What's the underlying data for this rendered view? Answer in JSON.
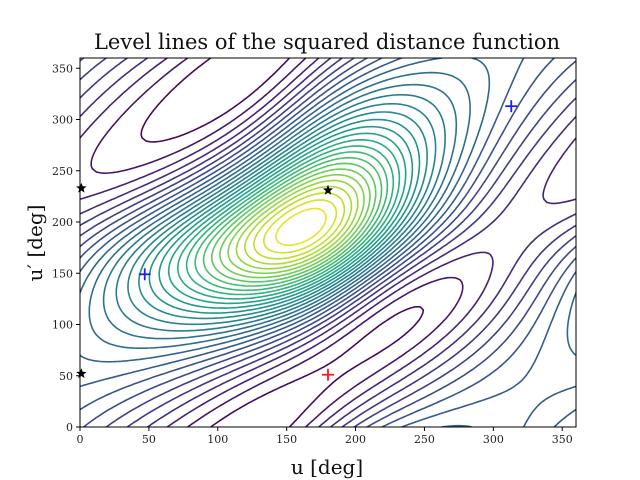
{
  "chart_data": {
    "type": "contour",
    "title": "Level lines of the squared distance function",
    "xlabel": "u [deg]",
    "ylabel": "u′ [deg]",
    "xlim": [
      0,
      360
    ],
    "ylim": [
      0,
      360
    ],
    "xticks": [
      0,
      50,
      100,
      150,
      200,
      250,
      300,
      350
    ],
    "yticks": [
      0,
      50,
      100,
      150,
      200,
      250,
      300,
      350
    ],
    "grid": false,
    "colormap": "viridis",
    "markers": [
      {
        "kind": "minimum",
        "symbol": "+",
        "color": "#1f1fff",
        "x": 47,
        "y": 149
      },
      {
        "kind": "minimum",
        "symbol": "+",
        "color": "#1f1fff",
        "x": 313,
        "y": 313
      },
      {
        "kind": "maximum",
        "symbol": "+",
        "color": "#ff1a1a",
        "x": 180,
        "y": 51
      },
      {
        "kind": "saddle",
        "symbol": "star",
        "color": "#000000",
        "x": 180,
        "y": 231
      },
      {
        "kind": "saddle",
        "symbol": "star",
        "color": "#000000",
        "x": 1,
        "y": 233
      },
      {
        "kind": "saddle",
        "symbol": "star",
        "color": "#000000",
        "x": 1,
        "y": 52
      }
    ]
  }
}
